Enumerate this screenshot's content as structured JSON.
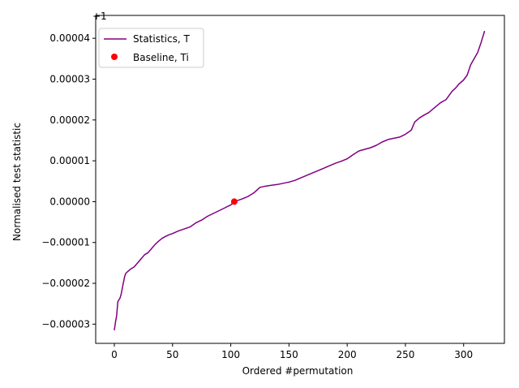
{
  "chart_data": {
    "type": "line",
    "xlabel": "Ordered #permutation",
    "ylabel": "Normalised test statistic",
    "offset_text": "+1",
    "xlim": [
      -16,
      335
    ],
    "ylim": [
      -3.47e-05,
      4.56e-05
    ],
    "x_ticks": [
      0,
      50,
      100,
      150,
      200,
      250,
      300
    ],
    "y_ticks": [
      -3e-05,
      -2e-05,
      -1e-05,
      0.0,
      1e-05,
      2e-05,
      3e-05,
      4e-05
    ],
    "y_tick_labels": [
      "−0.00003",
      "−0.00002",
      "−0.00001",
      "0.00000",
      "0.00001",
      "0.00002",
      "0.00003",
      "0.00004"
    ],
    "grid": false,
    "legend_position": "top-left",
    "series": [
      {
        "name": "Statistics, T",
        "kind": "line",
        "color": "#800080",
        "x": [
          0,
          1,
          2,
          3,
          4,
          5,
          6,
          7,
          8,
          9,
          10,
          12,
          14,
          17,
          20,
          23,
          26,
          29,
          32,
          35,
          38,
          41,
          44,
          47,
          50,
          55,
          60,
          65,
          70,
          75,
          80,
          85,
          90,
          95,
          100,
          103,
          110,
          115,
          120,
          125,
          130,
          135,
          140,
          145,
          150,
          155,
          160,
          165,
          170,
          175,
          180,
          185,
          190,
          195,
          200,
          205,
          210,
          215,
          220,
          225,
          230,
          235,
          240,
          245,
          250,
          255,
          258,
          262,
          266,
          270,
          275,
          280,
          285,
          288,
          290,
          293,
          296,
          300,
          303,
          306,
          309,
          312,
          315,
          318
        ],
        "y": [
          -3.15e-05,
          -2.95e-05,
          -2.8e-05,
          -2.45e-05,
          -2.4e-05,
          -2.35e-05,
          -2.25e-05,
          -2.1e-05,
          -1.95e-05,
          -1.82e-05,
          -1.75e-05,
          -1.7e-05,
          -1.65e-05,
          -1.6e-05,
          -1.5e-05,
          -1.4e-05,
          -1.3e-05,
          -1.25e-05,
          -1.15e-05,
          -1.05e-05,
          -9.7e-06,
          -9e-06,
          -8.5e-06,
          -8.1e-06,
          -7.8e-06,
          -7.2e-06,
          -6.7e-06,
          -6.2e-06,
          -5.2e-06,
          -4.5e-06,
          -3.6e-06,
          -2.9e-06,
          -2.2e-06,
          -1.5e-06,
          -8e-07,
          0.0,
          7e-07,
          1.3e-06,
          2.2e-06,
          3.5e-06,
          3.8e-06,
          4e-06,
          4.2e-06,
          4.5e-06,
          4.8e-06,
          5.2e-06,
          5.8e-06,
          6.4e-06,
          7e-06,
          7.6e-06,
          8.2e-06,
          8.8e-06,
          9.4e-06,
          9.9e-06,
          1.05e-05,
          1.15e-05,
          1.24e-05,
          1.28e-05,
          1.32e-05,
          1.38e-05,
          1.46e-05,
          1.52e-05,
          1.55e-05,
          1.58e-05,
          1.65e-05,
          1.75e-05,
          1.95e-05,
          2.05e-05,
          2.12e-05,
          2.18e-05,
          2.3e-05,
          2.42e-05,
          2.5e-05,
          2.62e-05,
          2.7e-05,
          2.78e-05,
          2.88e-05,
          2.98e-05,
          3.1e-05,
          3.35e-05,
          3.5e-05,
          3.65e-05,
          3.9e-05,
          4.18e-05
        ]
      },
      {
        "name": "Baseline, Ti",
        "kind": "point",
        "color": "#ff0000",
        "x": [
          103
        ],
        "y": [
          0.0
        ]
      }
    ]
  }
}
